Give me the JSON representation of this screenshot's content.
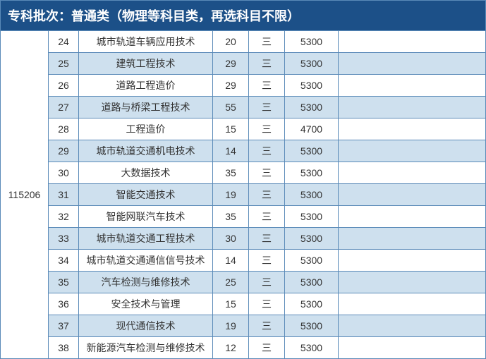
{
  "header": {
    "title": "专科批次：普通类（物理等科目类，再选科目不限）",
    "bg_color": "#1c5088",
    "text_color": "#ffffff"
  },
  "table": {
    "code": "115206",
    "border_color": "#5a8ab8",
    "row_bg_even": "#cee0ee",
    "row_bg_odd": "#ffffff",
    "columns": {
      "idx_width": 43,
      "name_width": 190,
      "num1_width": 51,
      "num2_width": 51,
      "fee_width": 76
    },
    "rows": [
      {
        "idx": "24",
        "name": "城市轨道车辆应用技术",
        "num1": "20",
        "num2": "三",
        "fee": "5300",
        "shaded": false
      },
      {
        "idx": "25",
        "name": "建筑工程技术",
        "num1": "29",
        "num2": "三",
        "fee": "5300",
        "shaded": true
      },
      {
        "idx": "26",
        "name": "道路工程造价",
        "num1": "29",
        "num2": "三",
        "fee": "5300",
        "shaded": false
      },
      {
        "idx": "27",
        "name": "道路与桥梁工程技术",
        "num1": "55",
        "num2": "三",
        "fee": "5300",
        "shaded": true
      },
      {
        "idx": "28",
        "name": "工程造价",
        "num1": "15",
        "num2": "三",
        "fee": "4700",
        "shaded": false
      },
      {
        "idx": "29",
        "name": "城市轨道交通机电技术",
        "num1": "14",
        "num2": "三",
        "fee": "5300",
        "shaded": true
      },
      {
        "idx": "30",
        "name": "大数据技术",
        "num1": "35",
        "num2": "三",
        "fee": "5300",
        "shaded": false
      },
      {
        "idx": "31",
        "name": "智能交通技术",
        "num1": "19",
        "num2": "三",
        "fee": "5300",
        "shaded": true
      },
      {
        "idx": "32",
        "name": "智能网联汽车技术",
        "num1": "35",
        "num2": "三",
        "fee": "5300",
        "shaded": false
      },
      {
        "idx": "33",
        "name": "城市轨道交通工程技术",
        "num1": "30",
        "num2": "三",
        "fee": "5300",
        "shaded": true
      },
      {
        "idx": "34",
        "name": "城市轨道交通通信信号技术",
        "num1": "14",
        "num2": "三",
        "fee": "5300",
        "shaded": false
      },
      {
        "idx": "35",
        "name": "汽车检测与维修技术",
        "num1": "25",
        "num2": "三",
        "fee": "5300",
        "shaded": true
      },
      {
        "idx": "36",
        "name": "安全技术与管理",
        "num1": "15",
        "num2": "三",
        "fee": "5300",
        "shaded": false
      },
      {
        "idx": "37",
        "name": "现代通信技术",
        "num1": "19",
        "num2": "三",
        "fee": "5300",
        "shaded": true
      },
      {
        "idx": "38",
        "name": "新能源汽车检测与维修技术",
        "num1": "12",
        "num2": "三",
        "fee": "5300",
        "shaded": false
      }
    ]
  }
}
